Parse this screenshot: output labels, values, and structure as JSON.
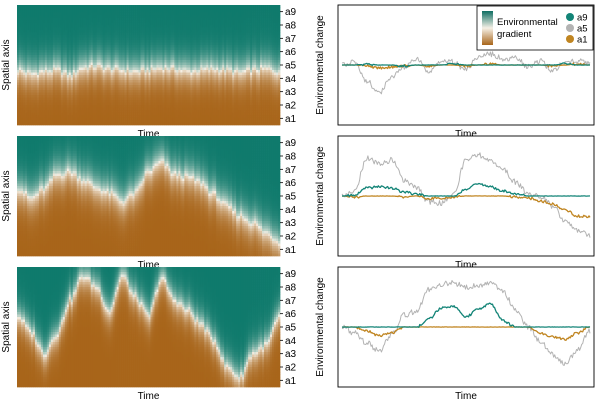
{
  "colors": {
    "teal": "#0f7a6c",
    "mid": "#f5f0e6",
    "brown": "#a8651a",
    "a9_line": "#138477",
    "a5_line": "#b3b3b3",
    "a1_line": "#c08521",
    "bg": "#ffffff",
    "axis": "#000000"
  },
  "legend": {
    "gradient_title_line1": "Environmental",
    "gradient_title_line2": "gradient",
    "series": [
      "a9",
      "a5",
      "a1"
    ]
  },
  "chart_data": [
    {
      "type": "heatmap",
      "panel": 1,
      "xlabel": "Time",
      "ylabel": "Spatial axis",
      "y_ticks": [
        "a1",
        "a2",
        "a3",
        "a4",
        "a5",
        "a6",
        "a7",
        "a8",
        "a9"
      ],
      "boundary_knots": [
        4.6,
        4.3,
        4.5,
        4.6,
        4.2,
        4.8,
        4.9,
        4.7,
        4.6,
        4.5,
        4.6,
        4.8,
        4.7,
        4.5,
        4.6,
        4.7,
        4.6,
        4.4,
        4.6,
        4.7,
        4.5
      ],
      "transition_width": 1.3
    },
    {
      "type": "line",
      "panel": 1,
      "xlabel": "Time",
      "ylabel": "Environmental change",
      "ylim": [
        -6,
        6
      ],
      "series": [
        {
          "name": "a9",
          "values": [
            0,
            0,
            0.1,
            0,
            0,
            -0.1,
            0,
            0,
            0,
            0.1,
            0,
            0,
            0,
            0,
            0,
            0,
            0,
            0,
            0.1,
            0,
            0
          ]
        },
        {
          "name": "a5",
          "values": [
            0,
            0.4,
            -1.6,
            -2.8,
            -1.2,
            -0.3,
            0.6,
            -0.8,
            0.5,
            0.3,
            -0.5,
            0.8,
            1.1,
            0.6,
            0.7,
            -0.2,
            0.4,
            -0.6,
            0.3,
            0.4,
            0.2
          ]
        },
        {
          "name": "a1",
          "values": [
            0,
            0,
            -0.1,
            -0.3,
            -0.2,
            -0.1,
            0,
            -0.1,
            0,
            0,
            -0.1,
            0,
            0.1,
            0,
            0,
            0,
            0,
            -0.1,
            0,
            0.1,
            0
          ]
        }
      ]
    },
    {
      "type": "heatmap",
      "panel": 2,
      "xlabel": "Time",
      "ylabel": "Spatial axis",
      "y_ticks": [
        "a1",
        "a2",
        "a3",
        "a4",
        "a5",
        "a6",
        "a7",
        "a8",
        "a9"
      ],
      "boundary_knots": [
        5.6,
        4.8,
        5.5,
        6.6,
        6.8,
        6.2,
        5.6,
        5.2,
        4.6,
        5.2,
        6.8,
        7.5,
        6.6,
        6.4,
        6.0,
        5.1,
        4.2,
        3.5,
        3.0,
        2.2,
        1.6
      ],
      "transition_width": 1.4
    },
    {
      "type": "line",
      "panel": 2,
      "xlabel": "Time",
      "ylabel": "Environmental change",
      "ylim": [
        -6,
        6
      ],
      "series": [
        {
          "name": "a9",
          "values": [
            0,
            0.1,
            0.8,
            0.9,
            0.8,
            0.4,
            0.2,
            0,
            0,
            0,
            0.7,
            1.2,
            0.9,
            0.5,
            0.2,
            0,
            0,
            0,
            0,
            0,
            0
          ]
        },
        {
          "name": "a5",
          "values": [
            0,
            0.5,
            3.8,
            3.2,
            3.6,
            1.6,
            0.8,
            -0.6,
            -0.7,
            0.3,
            3.6,
            4.1,
            3.4,
            2.6,
            1.4,
            0.2,
            0,
            -1.0,
            -2.6,
            -3.5,
            -3.9
          ]
        },
        {
          "name": "a1",
          "values": [
            0,
            -0.1,
            0,
            0,
            0,
            -0.1,
            0,
            -0.3,
            -0.2,
            -0.1,
            0,
            0,
            0,
            0,
            -0.1,
            -0.2,
            -0.5,
            -0.8,
            -1.4,
            -2.0,
            -2.1
          ]
        }
      ]
    },
    {
      "type": "heatmap",
      "panel": 3,
      "xlabel": "Time",
      "ylabel": "Spatial axis",
      "y_ticks": [
        "a1",
        "a2",
        "a3",
        "a4",
        "a5",
        "a6",
        "a7",
        "a8",
        "a9"
      ],
      "boundary_knots": [
        5.8,
        4.6,
        3.0,
        4.5,
        7.0,
        8.8,
        8.0,
        6.2,
        8.8,
        7.2,
        5.8,
        8.6,
        7.0,
        6.2,
        5.2,
        4.0,
        2.0,
        1.2,
        3.0,
        3.6,
        5.6
      ],
      "transition_width": 1.2
    },
    {
      "type": "line",
      "panel": 3,
      "xlabel": "Time",
      "ylabel": "Environmental change",
      "ylim": [
        -6,
        6
      ],
      "series": [
        {
          "name": "a9",
          "values": [
            0,
            0,
            0,
            0,
            0,
            0,
            0,
            0.8,
            1.9,
            2.1,
            1.0,
            1.8,
            2.3,
            0.6,
            0,
            0,
            0,
            0,
            0,
            0,
            0
          ]
        },
        {
          "name": "a5",
          "values": [
            0,
            -0.6,
            -1.6,
            -2.4,
            -0.8,
            1.2,
            1.6,
            3.8,
            4.3,
            4.4,
            4.0,
            4.2,
            4.3,
            3.6,
            1.6,
            0,
            -1.4,
            -2.8,
            -3.6,
            -2.3,
            -0.4
          ]
        },
        {
          "name": "a1",
          "values": [
            0,
            0,
            -0.4,
            -0.9,
            -0.6,
            0,
            0,
            0,
            0,
            0,
            0,
            0,
            0,
            0,
            0,
            0,
            -0.6,
            -1.0,
            -1.2,
            -0.6,
            0
          ]
        }
      ]
    }
  ]
}
